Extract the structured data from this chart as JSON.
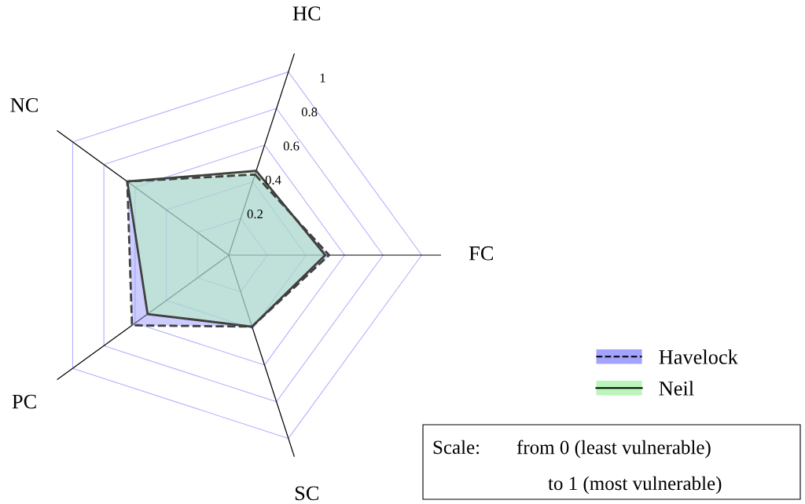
{
  "chart_data": {
    "type": "radar",
    "categories": [
      "HC",
      "FC",
      "SC",
      "PC",
      "NC"
    ],
    "series": [
      {
        "name": "Havelock",
        "color": "#9999ff",
        "line_style": "dashed",
        "values": [
          0.44,
          0.52,
          0.39,
          0.62,
          0.65
        ]
      },
      {
        "name": "Neil",
        "color": "#b3f5b3",
        "line_style": "solid",
        "values": [
          0.46,
          0.5,
          0.39,
          0.52,
          0.65
        ]
      }
    ],
    "ylim": [
      0,
      1.1
    ],
    "yticks": [
      0.2,
      0.4,
      0.6,
      0.8,
      1
    ],
    "grid": true,
    "legend": "bottom right",
    "annotations": [
      "Scale:",
      "from 0 (least vulnerable)",
      "to 1 (most vulnerable)"
    ]
  }
}
